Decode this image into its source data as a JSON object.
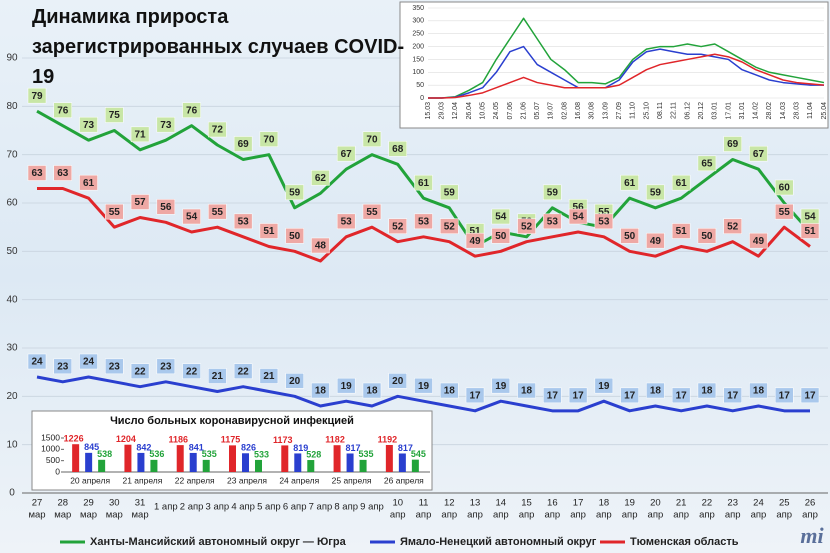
{
  "chart_data": [
    {
      "type": "line",
      "title": "Динамика прироста зарегистрированных случаев COVID-19",
      "categories": [
        [
          "27",
          "мар"
        ],
        [
          "28",
          "мар"
        ],
        [
          "29",
          "мар"
        ],
        [
          "30",
          "мар"
        ],
        [
          "31",
          "мар"
        ],
        [
          "1 апр"
        ],
        [
          "2 апр"
        ],
        [
          "3 апр"
        ],
        [
          "4 апр"
        ],
        [
          "5 апр"
        ],
        [
          "6 апр"
        ],
        [
          "7 апр"
        ],
        [
          "8 апр"
        ],
        [
          "9 апр"
        ],
        [
          "10",
          "апр"
        ],
        [
          "11",
          "апр"
        ],
        [
          "12",
          "апр"
        ],
        [
          "13",
          "апр"
        ],
        [
          "14",
          "апр"
        ],
        [
          "15",
          "апр"
        ],
        [
          "16",
          "апр"
        ],
        [
          "17",
          "апр"
        ],
        [
          "18",
          "апр"
        ],
        [
          "19",
          "апр"
        ],
        [
          "20",
          "апр"
        ],
        [
          "21",
          "апр"
        ],
        [
          "22",
          "апр"
        ],
        [
          "23",
          "апр"
        ],
        [
          "24",
          "апр"
        ],
        [
          "25",
          "апр"
        ],
        [
          "26",
          "апр"
        ]
      ],
      "series": [
        {
          "name": "Ханты-Мансийский автономный округ — Югра",
          "color": "#22a33a",
          "label_color": "#c8e6a6",
          "values": [
            79,
            76,
            73,
            75,
            71,
            73,
            76,
            72,
            69,
            70,
            59,
            62,
            67,
            70,
            68,
            61,
            59,
            51,
            54,
            53,
            59,
            56,
            55,
            61,
            59,
            61,
            65,
            69,
            67,
            60,
            54
          ]
        },
        {
          "name": "Ямало-Ненецкий автономный округ",
          "color": "#2a3fcf",
          "label_color": "#a9c8ec",
          "values": [
            24,
            23,
            24,
            23,
            22,
            23,
            22,
            21,
            22,
            21,
            20,
            18,
            19,
            18,
            20,
            19,
            18,
            17,
            19,
            18,
            17,
            17,
            19,
            17,
            18,
            17,
            18,
            17,
            18,
            17,
            17
          ]
        },
        {
          "name": "Тюменская область",
          "color": "#e0262a",
          "label_color": "#eea8a4",
          "values": [
            63,
            63,
            61,
            55,
            57,
            56,
            54,
            55,
            53,
            51,
            50,
            48,
            53,
            55,
            52,
            53,
            52,
            49,
            50,
            52,
            53,
            54,
            53,
            50,
            49,
            51,
            50,
            52,
            49,
            55,
            51
          ]
        }
      ],
      "ylim": [
        0,
        90
      ],
      "yticks": [
        0,
        10,
        20,
        30,
        40,
        50,
        60,
        70,
        80,
        90
      ],
      "grid": true,
      "logo": "mi"
    },
    {
      "type": "line",
      "categories": [
        "15.03",
        "29.03",
        "12.04",
        "26.04",
        "10.05",
        "24.05",
        "07.06",
        "21.06",
        "05.07",
        "19.07",
        "02.08",
        "16.08",
        "30.08",
        "13.09",
        "27.09",
        "11.10",
        "25.10",
        "08.11",
        "22.11",
        "06.12",
        "20.12",
        "03.01",
        "17.01",
        "31.01",
        "14.02",
        "28.02",
        "14.03",
        "28.03",
        "11.04",
        "25.04"
      ],
      "series": [
        {
          "color": "#22a33a",
          "values": [
            0,
            0,
            5,
            30,
            60,
            150,
            230,
            310,
            230,
            150,
            110,
            60,
            60,
            55,
            80,
            150,
            190,
            200,
            200,
            210,
            200,
            210,
            180,
            150,
            120,
            100,
            90,
            80,
            70,
            60
          ]
        },
        {
          "color": "#2a3fcf",
          "values": [
            0,
            0,
            3,
            20,
            40,
            100,
            180,
            200,
            130,
            100,
            70,
            40,
            40,
            40,
            70,
            140,
            180,
            190,
            180,
            170,
            170,
            160,
            150,
            110,
            90,
            70,
            60,
            55,
            50,
            50
          ]
        },
        {
          "color": "#e0262a",
          "values": [
            0,
            0,
            2,
            10,
            20,
            40,
            60,
            80,
            60,
            50,
            40,
            40,
            40,
            40,
            50,
            80,
            110,
            130,
            140,
            150,
            160,
            170,
            160,
            140,
            110,
            90,
            70,
            60,
            55,
            50
          ]
        }
      ],
      "ylim": [
        0,
        350
      ],
      "yticks": [
        0,
        50,
        100,
        150,
        200,
        250,
        300,
        350
      ],
      "grid": true
    },
    {
      "type": "bar",
      "title": "Число больных коронавирусной  инфекцией",
      "categories": [
        "20 апреля",
        "21 апреля",
        "22 апреля",
        "23 апреля",
        "24 апреля",
        "25 апреля",
        "26 апреля"
      ],
      "series": [
        {
          "color": "#e0262a",
          "values": [
            1226,
            1204,
            1186,
            1175,
            1173,
            1182,
            1192
          ]
        },
        {
          "color": "#2a3fcf",
          "values": [
            845,
            842,
            841,
            826,
            819,
            817,
            817
          ]
        },
        {
          "color": "#22a33a",
          "values": [
            538,
            536,
            535,
            533,
            528,
            535,
            545
          ]
        }
      ],
      "ylim": [
        0,
        1500
      ],
      "yticks": [
        0,
        500,
        1000,
        1500
      ]
    }
  ]
}
